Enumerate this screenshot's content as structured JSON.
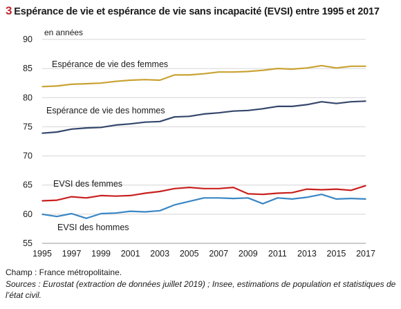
{
  "figure": {
    "number": "3",
    "title": "Espérance de vie et espérance de vie sans incapacité (EVSI) entre 1995 et 2017",
    "unit": "en années",
    "champ": "Champ : France métropolitaine.",
    "sources": "Sources : Eurostat (extraction de données juillet 2019) ; Insee, estimations de population et statistiques de l’état civil."
  },
  "chart_data": {
    "type": "line",
    "title": "Espérance de vie et espérance de vie sans incapacité (EVSI) entre 1995 et 2017",
    "ylabel": "en années",
    "xlabel": "",
    "x": [
      1995,
      1996,
      1997,
      1998,
      1999,
      2000,
      2001,
      2002,
      2003,
      2004,
      2005,
      2006,
      2007,
      2008,
      2009,
      2010,
      2011,
      2012,
      2013,
      2014,
      2015,
      2016,
      2017
    ],
    "ylim": [
      55,
      90
    ],
    "yticks": [
      55,
      60,
      65,
      70,
      75,
      80,
      85,
      90
    ],
    "xticks": [
      1995,
      1997,
      1999,
      2001,
      2003,
      2005,
      2007,
      2009,
      2011,
      2013,
      2015,
      2017
    ],
    "grid": "horizontal",
    "legend": "inline labels",
    "series": [
      {
        "name": "Espérance de vie des femmes",
        "color": "#c9a232",
        "values": [
          81.9,
          82.0,
          82.3,
          82.4,
          82.5,
          82.8,
          83.0,
          83.1,
          83.0,
          83.9,
          83.9,
          84.1,
          84.4,
          84.4,
          84.5,
          84.7,
          85.0,
          84.9,
          85.1,
          85.5,
          85.1,
          85.4,
          85.4
        ]
      },
      {
        "name": "Espérance de vie des hommes",
        "color": "#34466b",
        "values": [
          73.9,
          74.1,
          74.6,
          74.8,
          74.9,
          75.3,
          75.5,
          75.8,
          75.9,
          76.7,
          76.8,
          77.2,
          77.4,
          77.7,
          77.8,
          78.1,
          78.5,
          78.5,
          78.8,
          79.3,
          79.0,
          79.3,
          79.4
        ]
      },
      {
        "name": "EVSI des femmes",
        "color": "#c8201e",
        "values": [
          62.3,
          62.4,
          63.0,
          62.8,
          63.2,
          63.1,
          63.2,
          63.6,
          63.9,
          64.4,
          64.6,
          64.4,
          64.4,
          64.6,
          63.5,
          63.4,
          63.6,
          63.7,
          64.3,
          64.2,
          64.3,
          64.1,
          64.9
        ]
      },
      {
        "name": "EVSI des hommes",
        "color": "#3a86c4",
        "values": [
          60.0,
          59.6,
          60.1,
          59.3,
          60.1,
          60.2,
          60.5,
          60.4,
          60.6,
          61.6,
          62.2,
          62.8,
          62.8,
          62.7,
          62.8,
          61.8,
          62.8,
          62.6,
          62.9,
          63.4,
          62.6,
          62.7,
          62.6
        ]
      }
    ]
  }
}
